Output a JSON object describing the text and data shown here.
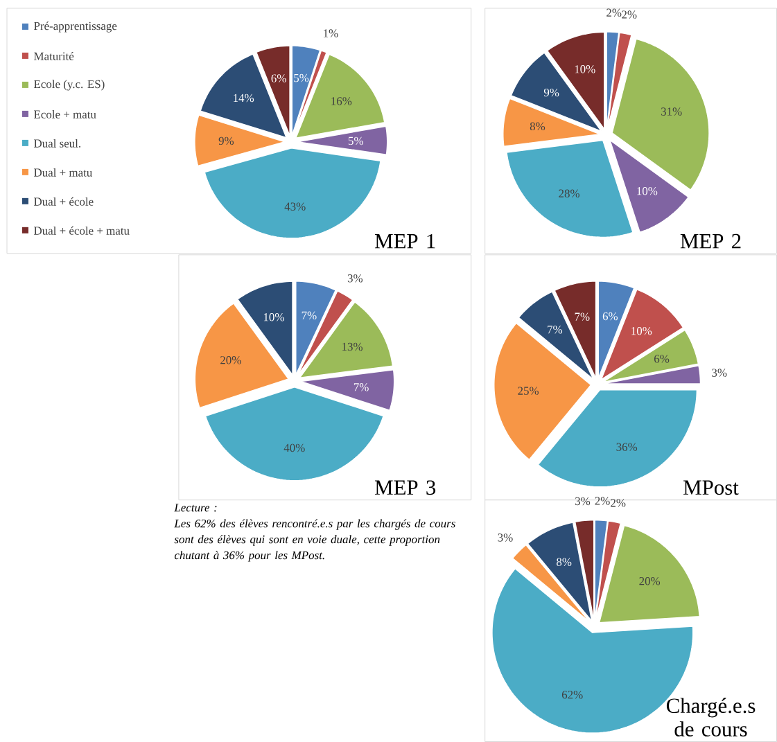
{
  "chart_data": [
    {
      "type": "pie",
      "title": "MEP 1",
      "categories": [
        "Pré-apprentissage",
        "Maturité",
        "Ecole (y.c. ES)",
        "Ecole + matu",
        "Dual seul.",
        "Dual + matu",
        "Dual + école",
        "Dual + école + matu"
      ],
      "values": [
        5,
        1,
        16,
        5,
        43,
        9,
        14,
        6
      ],
      "value_labels": [
        "5%",
        "1%",
        "16%",
        "5%",
        "43%",
        "9%",
        "14%",
        "6%"
      ],
      "colors": [
        "#4f81bd",
        "#c0504d",
        "#9bbb59",
        "#8064a2",
        "#4bacc6",
        "#f79646",
        "#2c4d75",
        "#772c2a"
      ],
      "legend": "left"
    },
    {
      "type": "pie",
      "title": "MEP 2",
      "categories": [
        null,
        null,
        null,
        null,
        null,
        null,
        null,
        null
      ],
      "values": [
        2,
        2,
        31,
        10,
        28,
        8,
        9,
        10
      ],
      "value_labels": [
        "2%",
        "2%",
        "31%",
        "10%",
        "28%",
        "8%",
        "9%",
        "10%"
      ],
      "colors": [
        "#4f81bd",
        "#c0504d",
        "#9bbb59",
        "#8064a2",
        "#4bacc6",
        "#f79646",
        "#2c4d75",
        "#772c2a"
      ]
    },
    {
      "type": "pie",
      "title": "MEP 3",
      "categories": [
        null,
        null,
        null,
        null,
        null,
        null,
        null,
        null
      ],
      "values": [
        7,
        3,
        13,
        7,
        40,
        20,
        10,
        null
      ],
      "value_labels": [
        "7%",
        "3%",
        "13%",
        "7%",
        "40%",
        "20%",
        "10%",
        null
      ],
      "colors": [
        "#4f81bd",
        "#c0504d",
        "#9bbb59",
        "#8064a2",
        "#4bacc6",
        "#f79646",
        "#2c4d75",
        "#772c2a"
      ],
      "annotations": [
        "Lecture :",
        "Les 62% des élèves rencontré.e.s par les chargés de cours sont des élèves qui sont en voie duale, cette proportion chutant à 36% pour les MPost."
      ]
    },
    {
      "type": "pie",
      "title": "MPost",
      "categories": [
        null,
        null,
        null,
        null,
        null,
        null,
        null,
        null
      ],
      "values": [
        6,
        10,
        6,
        3,
        36,
        25,
        7,
        7
      ],
      "value_labels": [
        "6%",
        "10%",
        "6%",
        "3%",
        "36%",
        "25%",
        "7%",
        "7%"
      ],
      "colors": [
        "#4f81bd",
        "#c0504d",
        "#9bbb59",
        "#8064a2",
        "#4bacc6",
        "#f79646",
        "#2c4d75",
        "#772c2a"
      ]
    },
    {
      "type": "pie",
      "title": "Chargé.e.s de cours",
      "categories": [
        null,
        null,
        null,
        null,
        null,
        null,
        null,
        null
      ],
      "values": [
        2,
        2,
        20,
        null,
        62,
        3,
        8,
        3
      ],
      "value_labels": [
        "2%",
        "2%",
        "20%",
        null,
        "62%",
        "3%",
        "8%",
        "3%"
      ],
      "colors": [
        "#4f81bd",
        "#c0504d",
        "#9bbb59",
        "#8064a2",
        "#4bacc6",
        "#f79646",
        "#2c4d75",
        "#772c2a"
      ]
    }
  ]
}
